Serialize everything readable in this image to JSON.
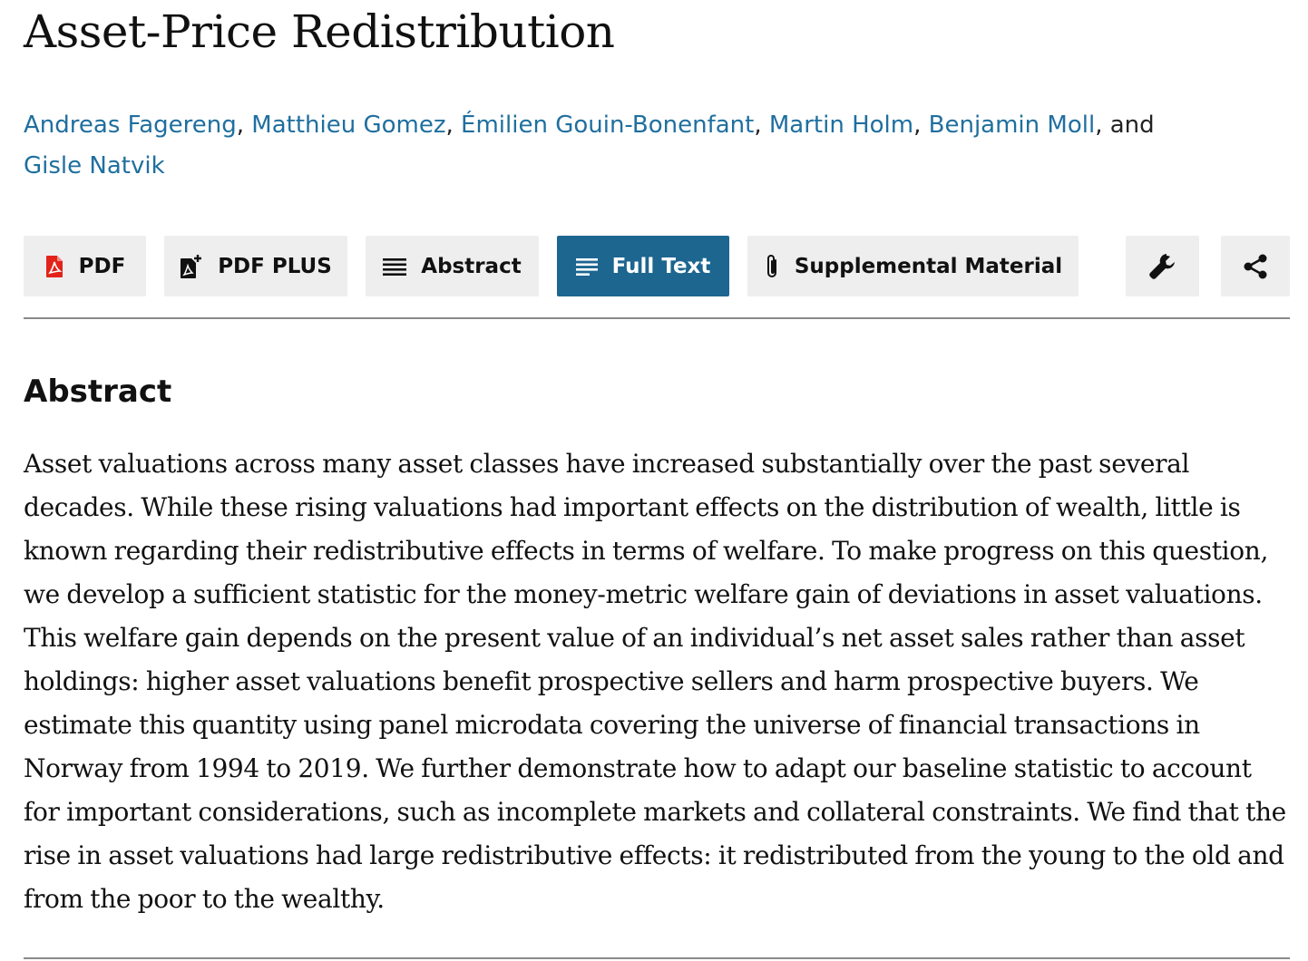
{
  "article": {
    "title": "Asset-Price Redistribution",
    "authors": [
      "Andreas Fagereng",
      "Matthieu Gomez",
      "Émilien Gouin-Bonenfant",
      "Martin Holm",
      "Benjamin Moll",
      "Gisle Natvik"
    ],
    "authors_separator": ", ",
    "authors_conjunction": ", and",
    "abstract_heading": "Abstract",
    "abstract_text": "Asset valuations across many asset classes have increased substantially over the past several decades. While these rising valuations had important effects on the distribution of wealth, little is known regarding their redistributive effects in terms of welfare. To make progress on this question, we develop a sufficient statistic for the money-metric welfare gain of deviations in asset valuations. This welfare gain depends on the present value of an individual’s net asset sales rather than asset holdings: higher asset valuations benefit prospective sellers and harm prospective buyers. We estimate this quantity using panel microdata covering the universe of financial transactions in Norway from 1994 to 2019. We further demonstrate how to adapt our baseline statistic to account for important considerations, such as incomplete markets and collateral constraints. We find that the rise in asset valuations had large redistributive effects: it redistributed from the young to the old and from the poor to the wealthy."
  },
  "toolbar": {
    "pdf_label": "PDF",
    "pdf_plus_label": "PDF PLUS",
    "abstract_label": "Abstract",
    "full_text_label": "Full Text",
    "supplemental_label": "Supplemental Material",
    "active_tab": "Full Text",
    "tools_icon": "wrench-icon",
    "share_icon": "share-icon"
  },
  "colors": {
    "link": "#1f6f9f",
    "active_button": "#1c6690",
    "button_bg": "#eeeeee",
    "pdf_icon": "#e2231a"
  }
}
